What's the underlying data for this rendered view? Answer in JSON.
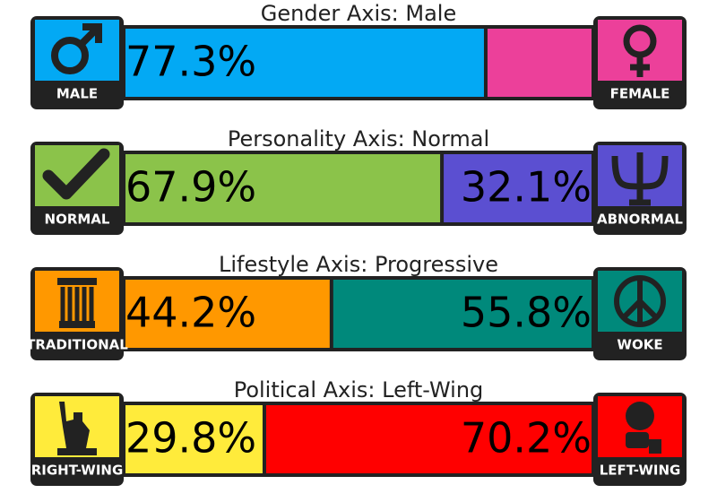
{
  "axes": [
    {
      "title": "Gender Axis: Male",
      "left": {
        "label": "MALE",
        "value": 77.3,
        "value_label": "77.3%",
        "color": "#03a9f4"
      },
      "right": {
        "label": "FEMALE",
        "value": 22.7,
        "color": "#ec409a"
      }
    },
    {
      "title": "Personality Axis: Normal",
      "left": {
        "label": "NORMAL",
        "value": 67.9,
        "value_label": "67.9%",
        "color": "#8bc34a"
      },
      "right": {
        "label": "ABNORMAL",
        "value": 32.1,
        "value_label": "32.1%",
        "color": "#5b4fd1"
      }
    },
    {
      "title": "Lifestyle Axis: Progressive",
      "left": {
        "label": "TRADITIONAL",
        "value": 44.2,
        "value_label": "44.2%",
        "color": "#ff9800"
      },
      "right": {
        "label": "WOKE",
        "value": 55.8,
        "value_label": "55.8%",
        "color": "#00897b"
      }
    },
    {
      "title": "Political Axis: Left-Wing",
      "left": {
        "label": "RIGHT-WING",
        "value": 29.8,
        "value_label": "29.8%",
        "color": "#ffeb3b"
      },
      "right": {
        "label": "LEFT-WING",
        "value": 70.2,
        "value_label": "70.2%",
        "color": "#ff0000"
      }
    }
  ]
}
